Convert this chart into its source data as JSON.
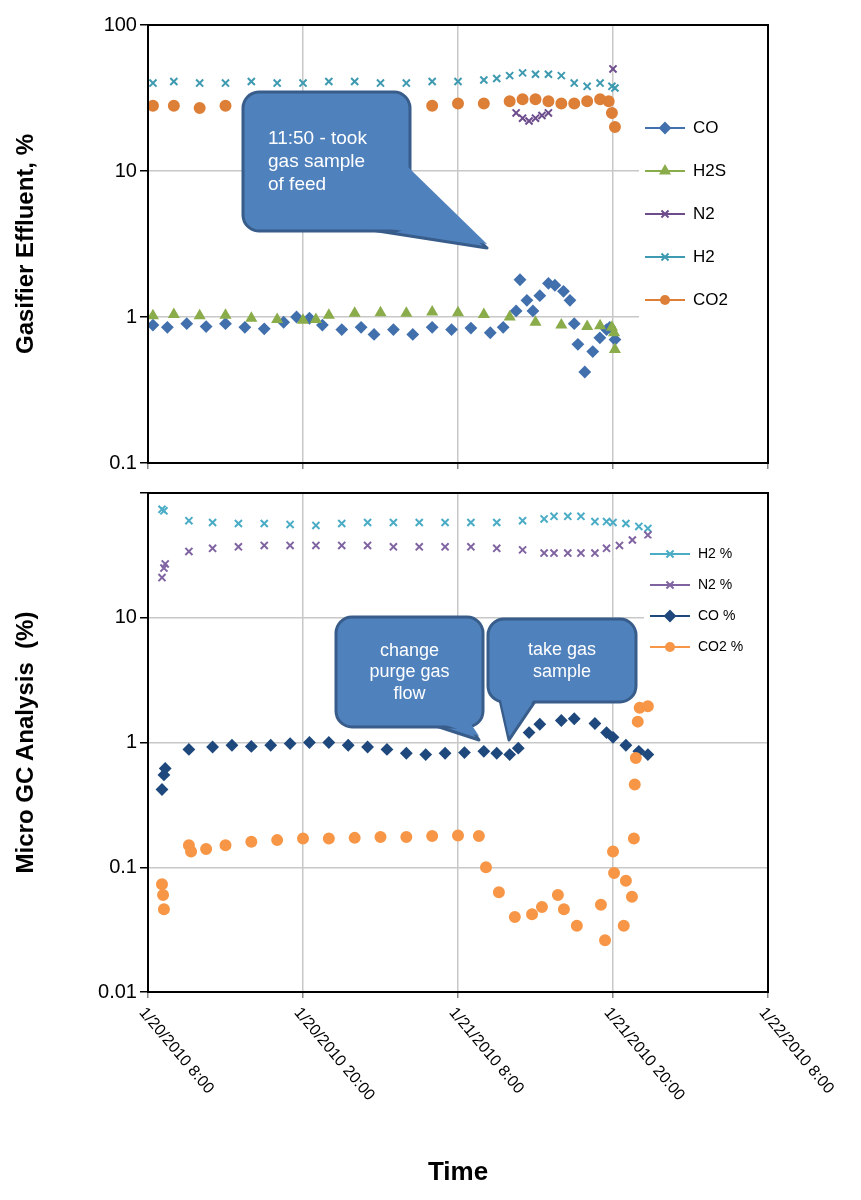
{
  "chart_data": [
    {
      "type": "scatter",
      "ylabel": "Gasifier Effluent, %",
      "log": "y",
      "grid": true,
      "legend": "right",
      "tick_labels": "y",
      "xlim": [
        "2010-01-20T08:00",
        "2010-01-22T08:00"
      ],
      "xticks": [
        {
          "value": "2010-01-20T08:00",
          "label": null
        },
        {
          "value": "2010-01-20T20:00",
          "label": null
        },
        {
          "value": "2010-01-21T08:00",
          "label": null
        },
        {
          "value": "2010-01-21T20:00",
          "label": null
        },
        {
          "value": "2010-01-22T08:00",
          "label": null
        }
      ],
      "ylim": [
        0.1,
        100
      ],
      "yticks": [
        0.1,
        1,
        10,
        100
      ],
      "annotations": [
        "11:50 - took gas sample of feed"
      ],
      "series": [
        {
          "name": "CO",
          "color": "#4170ad",
          "marker": "diamond",
          "x": [
            "2010-01-20T08:23",
            "2010-01-20T09:30",
            "2010-01-20T11:00",
            "2010-01-20T12:30",
            "2010-01-20T14:00",
            "2010-01-20T15:30",
            "2010-01-20T17:00",
            "2010-01-20T18:30",
            "2010-01-20T19:30",
            "2010-01-20T20:30",
            "2010-01-20T21:30",
            "2010-01-20T23:00",
            "2010-01-21T00:30",
            "2010-01-21T01:30",
            "2010-01-21T03:00",
            "2010-01-21T04:30",
            "2010-01-21T06:00",
            "2010-01-21T07:30",
            "2010-01-21T09:00",
            "2010-01-21T10:30",
            "2010-01-21T11:30",
            "2010-01-21T12:30",
            "2010-01-21T12:48",
            "2010-01-21T13:20",
            "2010-01-21T13:48",
            "2010-01-21T14:20",
            "2010-01-21T15:00",
            "2010-01-21T15:30",
            "2010-01-21T16:10",
            "2010-01-21T16:40",
            "2010-01-21T17:00",
            "2010-01-21T17:17",
            "2010-01-21T17:49",
            "2010-01-21T18:26",
            "2010-01-21T18:59",
            "2010-01-21T19:30",
            "2010-01-21T19:45",
            "2010-01-21T20:09"
          ],
          "values": [
            0.88,
            0.85,
            0.9,
            0.86,
            0.9,
            0.85,
            0.83,
            0.92,
            1.0,
            0.98,
            0.88,
            0.82,
            0.85,
            0.76,
            0.82,
            0.76,
            0.85,
            0.82,
            0.84,
            0.78,
            0.85,
            1.1,
            1.8,
            1.3,
            1.1,
            1.4,
            1.7,
            1.65,
            1.5,
            1.3,
            0.9,
            0.65,
            0.42,
            0.58,
            0.72,
            0.82,
            0.85,
            0.7
          ]
        },
        {
          "name": "H2S",
          "color": "#8aac4a",
          "marker": "triangle",
          "x": [
            "2010-01-20T08:23",
            "2010-01-20T10:00",
            "2010-01-20T12:00",
            "2010-01-20T14:00",
            "2010-01-20T16:00",
            "2010-01-20T18:00",
            "2010-01-20T20:00",
            "2010-01-20T21:00",
            "2010-01-20T22:00",
            "2010-01-21T00:00",
            "2010-01-21T02:00",
            "2010-01-21T04:00",
            "2010-01-21T06:00",
            "2010-01-21T08:00",
            "2010-01-21T10:00",
            "2010-01-21T12:00",
            "2010-01-21T14:00",
            "2010-01-21T16:00",
            "2010-01-21T18:00",
            "2010-01-21T19:00",
            "2010-01-21T19:55",
            "2010-01-21T20:05",
            "2010-01-21T20:09"
          ],
          "values": [
            1.02,
            1.04,
            1.02,
            1.03,
            0.98,
            0.96,
            0.95,
            0.96,
            1.03,
            1.06,
            1.07,
            1.06,
            1.08,
            1.07,
            1.04,
            1.0,
            0.92,
            0.88,
            0.86,
            0.87,
            0.85,
            0.78,
            0.6
          ]
        },
        {
          "name": "N2",
          "color": "#6d4c8c",
          "marker": "cross",
          "x": [
            "2010-01-21T12:30",
            "2010-01-21T13:00",
            "2010-01-21T13:30",
            "2010-01-21T14:00",
            "2010-01-21T14:30",
            "2010-01-21T15:00",
            "2010-01-21T20:00"
          ],
          "values": [
            25,
            23,
            22,
            23,
            24,
            25,
            50
          ]
        },
        {
          "name": "H2",
          "color": "#3e9ab0",
          "marker": "cross",
          "x": [
            "2010-01-20T08:23",
            "2010-01-20T10:00",
            "2010-01-20T12:00",
            "2010-01-20T14:00",
            "2010-01-20T16:00",
            "2010-01-20T18:00",
            "2010-01-20T20:00",
            "2010-01-20T22:00",
            "2010-01-21T00:00",
            "2010-01-21T02:00",
            "2010-01-21T04:00",
            "2010-01-21T06:00",
            "2010-01-21T08:00",
            "2010-01-21T10:00",
            "2010-01-21T11:00",
            "2010-01-21T12:00",
            "2010-01-21T13:00",
            "2010-01-21T14:00",
            "2010-01-21T15:00",
            "2010-01-21T16:00",
            "2010-01-21T17:00",
            "2010-01-21T18:00",
            "2010-01-21T19:00",
            "2010-01-21T19:55",
            "2010-01-21T20:09"
          ],
          "values": [
            40,
            41,
            40,
            40,
            41,
            40,
            40,
            41,
            41,
            40,
            40,
            41,
            41,
            42,
            43,
            45,
            47,
            46,
            46,
            45,
            40,
            38,
            40,
            38,
            37
          ]
        },
        {
          "name": "CO2",
          "color": "#dd7f37",
          "marker": "circle",
          "x": [
            "2010-01-20T08:23",
            "2010-01-20T10:00",
            "2010-01-20T12:00",
            "2010-01-20T14:00",
            "2010-01-20T16:00",
            "2010-01-20T18:00",
            "2010-01-20T20:00",
            "2010-01-20T22:00",
            "2010-01-21T00:00",
            "2010-01-21T02:00",
            "2010-01-21T04:00",
            "2010-01-21T06:00",
            "2010-01-21T08:00",
            "2010-01-21T10:00",
            "2010-01-21T12:00",
            "2010-01-21T13:00",
            "2010-01-21T14:00",
            "2010-01-21T15:00",
            "2010-01-21T16:00",
            "2010-01-21T17:00",
            "2010-01-21T18:00",
            "2010-01-21T19:00",
            "2010-01-21T19:40",
            "2010-01-21T19:55",
            "2010-01-21T20:09"
          ],
          "values": [
            28,
            28,
            27,
            28,
            null,
            null,
            null,
            null,
            null,
            null,
            null,
            28,
            29,
            29,
            30,
            31,
            31,
            30,
            29,
            29,
            30,
            31,
            30,
            25,
            20
          ]
        }
      ]
    },
    {
      "type": "scatter",
      "xlabel": "Time",
      "ylabel": "Micro GC Analysis  (%)",
      "log": "y",
      "grid": true,
      "legend": "right",
      "xlim": [
        "2010-01-20T08:00",
        "2010-01-22T08:00"
      ],
      "xticks": [
        {
          "value": "2010-01-20T08:00",
          "label": "1/20/2010 8:00"
        },
        {
          "value": "2010-01-20T20:00",
          "label": "1/20/2010 20:00"
        },
        {
          "value": "2010-01-21T08:00",
          "label": "1/21/2010 8:00"
        },
        {
          "value": "2010-01-21T20:00",
          "label": "1/21/2010 20:00"
        },
        {
          "value": "2010-01-22T08:00",
          "label": "1/22/2010 8:00"
        }
      ],
      "ylim": [
        0.01,
        100
      ],
      "yticks": [
        0.01,
        0.1,
        1,
        10,
        {
          "value": 100,
          "label": null
        }
      ],
      "annotations": [
        "change purge gas flow",
        "take gas sample"
      ],
      "series": [
        {
          "name": "H2 %",
          "color": "#4bacc6",
          "marker": "cross",
          "x": [
            "2010-01-20T09:05",
            "2010-01-20T09:14",
            "2010-01-20T11:10",
            "2010-01-20T13:00",
            "2010-01-20T15:00",
            "2010-01-20T17:00",
            "2010-01-20T19:00",
            "2010-01-20T21:00",
            "2010-01-20T23:00",
            "2010-01-21T01:00",
            "2010-01-21T03:00",
            "2010-01-21T05:00",
            "2010-01-21T07:00",
            "2010-01-21T09:00",
            "2010-01-21T11:00",
            "2010-01-21T13:00",
            "2010-01-21T14:40",
            "2010-01-21T15:26",
            "2010-01-21T16:30",
            "2010-01-21T17:31",
            "2010-01-21T18:36",
            "2010-01-21T19:30",
            "2010-01-21T20:00",
            "2010-01-21T21:00",
            "2010-01-21T22:00",
            "2010-01-21T22:42"
          ],
          "values": [
            74,
            72,
            60,
            58,
            57,
            57,
            56,
            55,
            57,
            58,
            58,
            58,
            58,
            58,
            58,
            60,
            62,
            65,
            65,
            65,
            59,
            59,
            58,
            57,
            54,
            52
          ]
        },
        {
          "name": "N2 %",
          "color": "#8064a2",
          "marker": "cross",
          "x": [
            "2010-01-20T09:05",
            "2010-01-20T09:14",
            "2010-01-20T09:20",
            "2010-01-20T11:10",
            "2010-01-20T13:00",
            "2010-01-20T15:00",
            "2010-01-20T17:00",
            "2010-01-20T19:00",
            "2010-01-20T21:00",
            "2010-01-20T23:00",
            "2010-01-21T01:00",
            "2010-01-21T03:00",
            "2010-01-21T05:00",
            "2010-01-21T07:00",
            "2010-01-21T09:00",
            "2010-01-21T11:00",
            "2010-01-21T13:00",
            "2010-01-21T14:40",
            "2010-01-21T15:26",
            "2010-01-21T16:30",
            "2010-01-21T17:31",
            "2010-01-21T18:36",
            "2010-01-21T19:30",
            "2010-01-21T20:30",
            "2010-01-21T21:30",
            "2010-01-21T22:42"
          ],
          "values": [
            21,
            25,
            27,
            34,
            36,
            37,
            38,
            38,
            38,
            38,
            38,
            37,
            37,
            37,
            37,
            36,
            35,
            33,
            33,
            33,
            33,
            33,
            36,
            38,
            42,
            46
          ]
        },
        {
          "name": "CO %",
          "color": "#1f497d",
          "marker": "diamond",
          "x": [
            "2010-01-20T09:05",
            "2010-01-20T09:14",
            "2010-01-20T09:20",
            "2010-01-20T11:10",
            "2010-01-20T13:00",
            "2010-01-20T14:30",
            "2010-01-20T16:00",
            "2010-01-20T17:30",
            "2010-01-20T19:00",
            "2010-01-20T20:30",
            "2010-01-20T22:00",
            "2010-01-20T23:30",
            "2010-01-21T01:00",
            "2010-01-21T02:30",
            "2010-01-21T04:00",
            "2010-01-21T05:30",
            "2010-01-21T07:00",
            "2010-01-21T08:30",
            "2010-01-21T10:00",
            "2010-01-21T11:00",
            "2010-01-21T12:00",
            "2010-01-21T12:40",
            "2010-01-21T13:30",
            "2010-01-21T14:20",
            "2010-01-21T16:00",
            "2010-01-21T17:00",
            "2010-01-21T18:36",
            "2010-01-21T19:30",
            "2010-01-21T20:00",
            "2010-01-21T21:00",
            "2010-01-21T22:00",
            "2010-01-21T22:42"
          ],
          "values": [
            0.42,
            0.55,
            0.62,
            0.88,
            0.92,
            0.95,
            0.93,
            0.95,
            0.98,
            1.0,
            1.0,
            0.95,
            0.92,
            0.88,
            0.82,
            0.8,
            0.82,
            0.83,
            0.85,
            0.82,
            0.8,
            0.9,
            1.2,
            1.4,
            1.5,
            1.55,
            1.42,
            1.2,
            1.1,
            0.95,
            0.85,
            0.8
          ]
        },
        {
          "name": "CO2 %",
          "color": "#f79646",
          "marker": "circle",
          "x": [
            "2010-01-20T09:05",
            "2010-01-20T09:10",
            "2010-01-20T09:14",
            "2010-01-20T11:10",
            "2010-01-20T11:20",
            "2010-01-20T12:30",
            "2010-01-20T14:00",
            "2010-01-20T16:00",
            "2010-01-20T18:00",
            "2010-01-20T20:00",
            "2010-01-20T22:00",
            "2010-01-21T00:00",
            "2010-01-21T02:00",
            "2010-01-21T04:00",
            "2010-01-21T06:00",
            "2010-01-21T08:00",
            "2010-01-21T09:37",
            "2010-01-21T10:10",
            "2010-01-21T11:10",
            "2010-01-21T12:24",
            "2010-01-21T13:44",
            "2010-01-21T14:30",
            "2010-01-21T15:44",
            "2010-01-21T16:12",
            "2010-01-21T17:12",
            "2010-01-21T19:04",
            "2010-01-21T19:23",
            "2010-01-21T20:00",
            "2010-01-21T20:05",
            "2010-01-21T20:50",
            "2010-01-21T21:00",
            "2010-01-21T21:28",
            "2010-01-21T21:37",
            "2010-01-21T21:41",
            "2010-01-21T21:46",
            "2010-01-21T21:55",
            "2010-01-21T22:04",
            "2010-01-21T22:42"
          ],
          "values": [
            0.073,
            0.06,
            0.046,
            0.15,
            0.134,
            0.14,
            0.15,
            0.16,
            0.165,
            0.17,
            0.17,
            0.172,
            0.175,
            0.175,
            0.178,
            0.18,
            0.178,
            0.1,
            0.063,
            0.04,
            0.042,
            0.048,
            0.06,
            0.046,
            0.034,
            0.05,
            0.026,
            0.134,
            0.09,
            0.034,
            0.078,
            0.058,
            0.17,
            0.46,
            0.75,
            1.47,
            1.9,
            1.95
          ]
        }
      ]
    }
  ]
}
